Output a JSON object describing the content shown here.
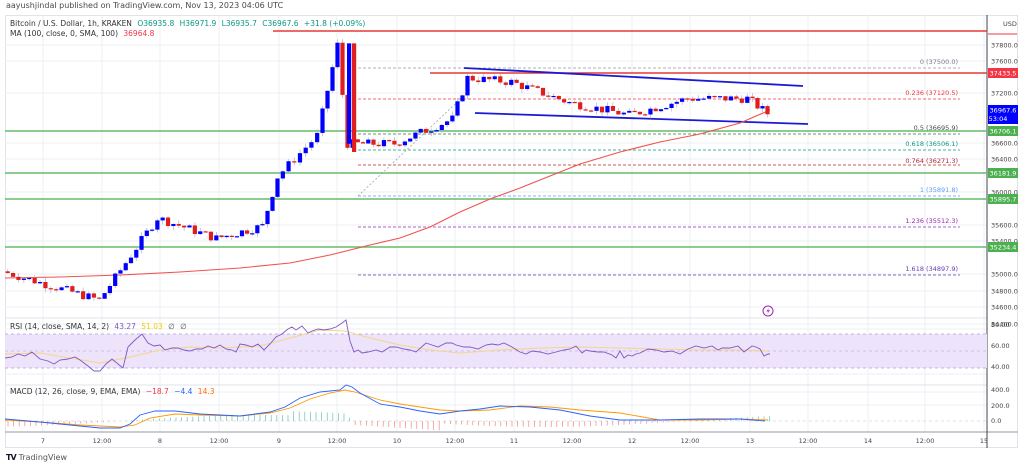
{
  "header": {
    "publisher_line": "aayushjindal published on TradingView.com, Nov 13, 2023 04:06 UTC"
  },
  "legend": {
    "symbol": "Bitcoin / U.S. Dollar, 1h, KRAKEN",
    "open": "O36935.8",
    "high": "H36971.9",
    "low": "L36935.7",
    "close": "C36967.6",
    "change": "+31.8 (+0.09%)",
    "ma_label": "MA (100, close, 0, SMA, 100)",
    "ma_value": "36964.8",
    "rsi_label": "RSI (14, close, SMA, 14, 2)",
    "rsi_value": "43.27",
    "rsi_sma_value": "51.03",
    "rsi_extra_1": "∅",
    "rsi_extra_2": "∅",
    "macd_label": "MACD (12, 26, close, 9, EMA, EMA)",
    "macd_hist": "−18.7",
    "macd_line": "−4.4",
    "macd_signal": "14.3"
  },
  "price_axis": {
    "currency": "USD",
    "ticks": [
      "37800.0",
      "37600.0",
      "37200.0",
      "36600.0",
      "36400.0",
      "36000.0",
      "35600.0",
      "35400.0",
      "35000.0",
      "34800.0",
      "34600.0",
      "34400.0"
    ],
    "tags": [
      {
        "value": "37433.5",
        "color": "#f23645"
      },
      {
        "value": "36967.6",
        "sub": "53:04",
        "color": "#0000ff"
      },
      {
        "value": "36706.1",
        "color": "#4caf50"
      },
      {
        "value": "36181.9",
        "color": "#4caf50"
      },
      {
        "value": "35895.7",
        "color": "#4caf50"
      },
      {
        "value": "35234.4",
        "color": "#4caf50"
      }
    ]
  },
  "fib_levels": [
    {
      "label": "0 (37500.0)",
      "color": "#787b86"
    },
    {
      "label": "0.236 (37120.5)",
      "color": "#f23645"
    },
    {
      "label": "0.5 (36695.9)",
      "color": "#4caf50"
    },
    {
      "label": "0.618 (36506.1)",
      "color": "#089981"
    },
    {
      "label": "0.764 (36271.3)",
      "color": "#b22833"
    },
    {
      "label": "1 (35891.8)",
      "color": "#5b9cf6"
    },
    {
      "label": "1.236 (35512.3)",
      "color": "#9c27b0"
    },
    {
      "label": "1.618 (34897.9)",
      "color": "#673ab7"
    }
  ],
  "rsi_axis": {
    "ticks": [
      "80.00",
      "60.00",
      "40.00"
    ]
  },
  "macd_axis": {
    "ticks": [
      "400.0",
      "200.0",
      "0.0"
    ]
  },
  "time_axis": {
    "ticks": [
      "7",
      "12:00",
      "8",
      "12:00",
      "9",
      "12:00",
      "10",
      "12:00",
      "11",
      "12:00",
      "12",
      "12:00",
      "13",
      "12:00",
      "14",
      "12:00",
      "15"
    ]
  },
  "footer": {
    "logo": "TV",
    "brand": "TradingView"
  },
  "colors": {
    "bull": "#0000ff",
    "bear": "#e01e1e",
    "ma": "#f23645",
    "support": "#4caf50",
    "resistance": "#f23645",
    "channel": "#1a1ad6",
    "rsi_line": "#7e57c2",
    "rsi_band": "#ede3fb",
    "rsi_sma": "#f5d68a",
    "macd_line": "#2962ff",
    "macd_signal": "#ff6d00"
  },
  "chart_data": {
    "type": "candlestick",
    "title": "Bitcoin / U.S. Dollar, 1h, KRAKEN",
    "xlabel": "",
    "ylabel": "USD",
    "ylim": [
      34300,
      37950
    ],
    "x_ticks": [
      "7",
      "12:00",
      "8",
      "12:00",
      "9",
      "12:00",
      "10",
      "12:00",
      "11",
      "12:00",
      "12",
      "12:00",
      "13",
      "12:00",
      "14",
      "12:00",
      "15"
    ],
    "ohlc_last": {
      "open": 36935.8,
      "high": 36971.9,
      "low": 36935.7,
      "close": 36967.6,
      "change": 31.8,
      "change_pct": 0.09
    },
    "approx_close_path": [
      [
        "7 00:00",
        35050
      ],
      [
        "7 12:00",
        34700
      ],
      [
        "8 00:00",
        35700
      ],
      [
        "8 12:00",
        35450
      ],
      [
        "8 22:00",
        35600
      ],
      [
        "9 00:00",
        36200
      ],
      [
        "9 08:00",
        36700
      ],
      [
        "9 15:00",
        37800
      ],
      [
        "9 16:00",
        36600
      ],
      [
        "10 00:00",
        36600
      ],
      [
        "10 12:00",
        36900
      ],
      [
        "10 16:00",
        37400
      ],
      [
        "11 00:00",
        37350
      ],
      [
        "11 12:00",
        37100
      ],
      [
        "12 00:00",
        36950
      ],
      [
        "12 12:00",
        37150
      ],
      [
        "13 00:00",
        37150
      ],
      [
        "13 06:00",
        36967.6
      ]
    ],
    "horizontal_lines": {
      "resistance": [
        37900,
        37433.5
      ],
      "support": [
        36706.1,
        36181.9,
        35895.7,
        35234.4
      ]
    },
    "descending_channel": {
      "upper": [
        [
          "10 14:00",
          37480
        ],
        [
          "13 10:00",
          37300
        ]
      ],
      "lower": [
        [
          "10 14:00",
          36950
        ],
        [
          "13 10:00",
          36780
        ]
      ]
    },
    "fibonacci": {
      "0": 37500.0,
      "0.236": 37120.5,
      "0.5": 36695.9,
      "0.618": 36506.1,
      "0.764": 36271.3,
      "1": 35891.8,
      "1.236": 35512.3,
      "1.618": 34897.9
    },
    "series": [
      {
        "name": "MA (100, close, 0, SMA, 100)",
        "last": 36964.8
      },
      {
        "name": "RSI (14)",
        "last": 43.27,
        "ylim": [
          20,
          90
        ]
      },
      {
        "name": "RSI SMA (14)",
        "last": 51.03
      },
      {
        "name": "MACD histogram",
        "last": -18.7
      },
      {
        "name": "MACD",
        "last": -4.4
      },
      {
        "name": "Signal",
        "last": 14.3
      }
    ]
  }
}
